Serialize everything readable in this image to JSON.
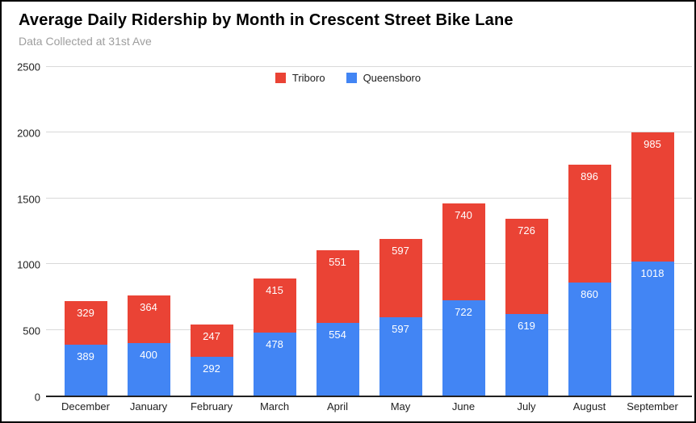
{
  "header": {
    "title": "Average Daily Ridership by Month in Crescent Street Bike Lane",
    "subtitle": "Data Collected at 31st Ave"
  },
  "legend": {
    "position": "top-center",
    "items": [
      {
        "label": "Triboro",
        "color": "#EA4335"
      },
      {
        "label": "Queensboro",
        "color": "#4285F4"
      }
    ]
  },
  "chart_data": {
    "type": "bar",
    "stacked": true,
    "title": "Average Daily Ridership by Month in Crescent Street Bike Lane",
    "subtitle": "Data Collected at 31st Ave",
    "categories": [
      "December",
      "January",
      "February",
      "March",
      "April",
      "May",
      "June",
      "July",
      "August",
      "September"
    ],
    "series": [
      {
        "name": "Queensboro",
        "color": "#4285F4",
        "values": [
          389,
          400,
          292,
          478,
          554,
          597,
          722,
          619,
          860,
          1018
        ]
      },
      {
        "name": "Triboro",
        "color": "#EA4335",
        "values": [
          329,
          364,
          247,
          415,
          551,
          597,
          740,
          726,
          896,
          985
        ]
      }
    ],
    "stack_order_bottom_to_top": [
      "Queensboro",
      "Triboro"
    ],
    "totals": [
      718,
      764,
      539,
      893,
      1105,
      1194,
      1462,
      1345,
      1756,
      2003
    ],
    "xlabel": "",
    "ylabel": "",
    "ylim": [
      0,
      2500
    ],
    "yticks": [
      0,
      500,
      1000,
      1500,
      2000,
      2500
    ],
    "grid": true,
    "data_labels": "inside-top",
    "legend_position": "top-center",
    "colors": {
      "grid": "#D9D9D9",
      "axis": "#212121",
      "title_text": "#000000",
      "subtitle_text": "#9E9E9E",
      "tick_text": "#212121",
      "data_label_text": "#FFFFFF",
      "background": "#FFFFFF",
      "border": "#000000"
    }
  }
}
